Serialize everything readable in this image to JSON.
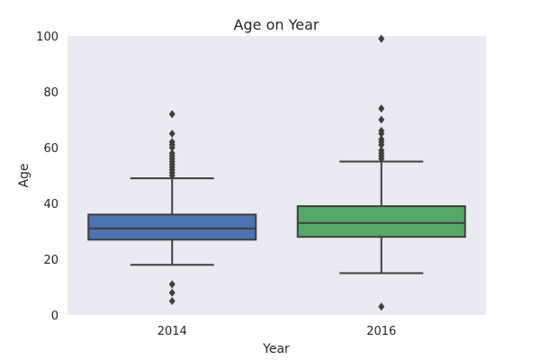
{
  "chart_data": {
    "type": "box",
    "title": "Age on Year",
    "xlabel": "Year",
    "ylabel": "Age",
    "ylim": [
      0,
      100
    ],
    "yticks": [
      0,
      20,
      40,
      60,
      80,
      100
    ],
    "grid": false,
    "categories": [
      "2014",
      "2016"
    ],
    "boxes": [
      {
        "category": "2014",
        "color": "#4c72b0",
        "whisker_low": 18,
        "q1": 27,
        "median": 31,
        "q3": 36,
        "whisker_high": 49,
        "outliers": [
          5,
          8,
          11,
          50,
          51,
          52,
          53,
          54,
          55,
          56,
          57,
          58,
          60,
          61,
          62,
          65,
          72
        ]
      },
      {
        "category": "2016",
        "color": "#55a868",
        "whisker_low": 15,
        "q1": 28,
        "median": 33,
        "q3": 39,
        "whisker_high": 55,
        "outliers": [
          3,
          56,
          57,
          58,
          59,
          61,
          62,
          63,
          65,
          66,
          70,
          74,
          99
        ]
      }
    ]
  }
}
